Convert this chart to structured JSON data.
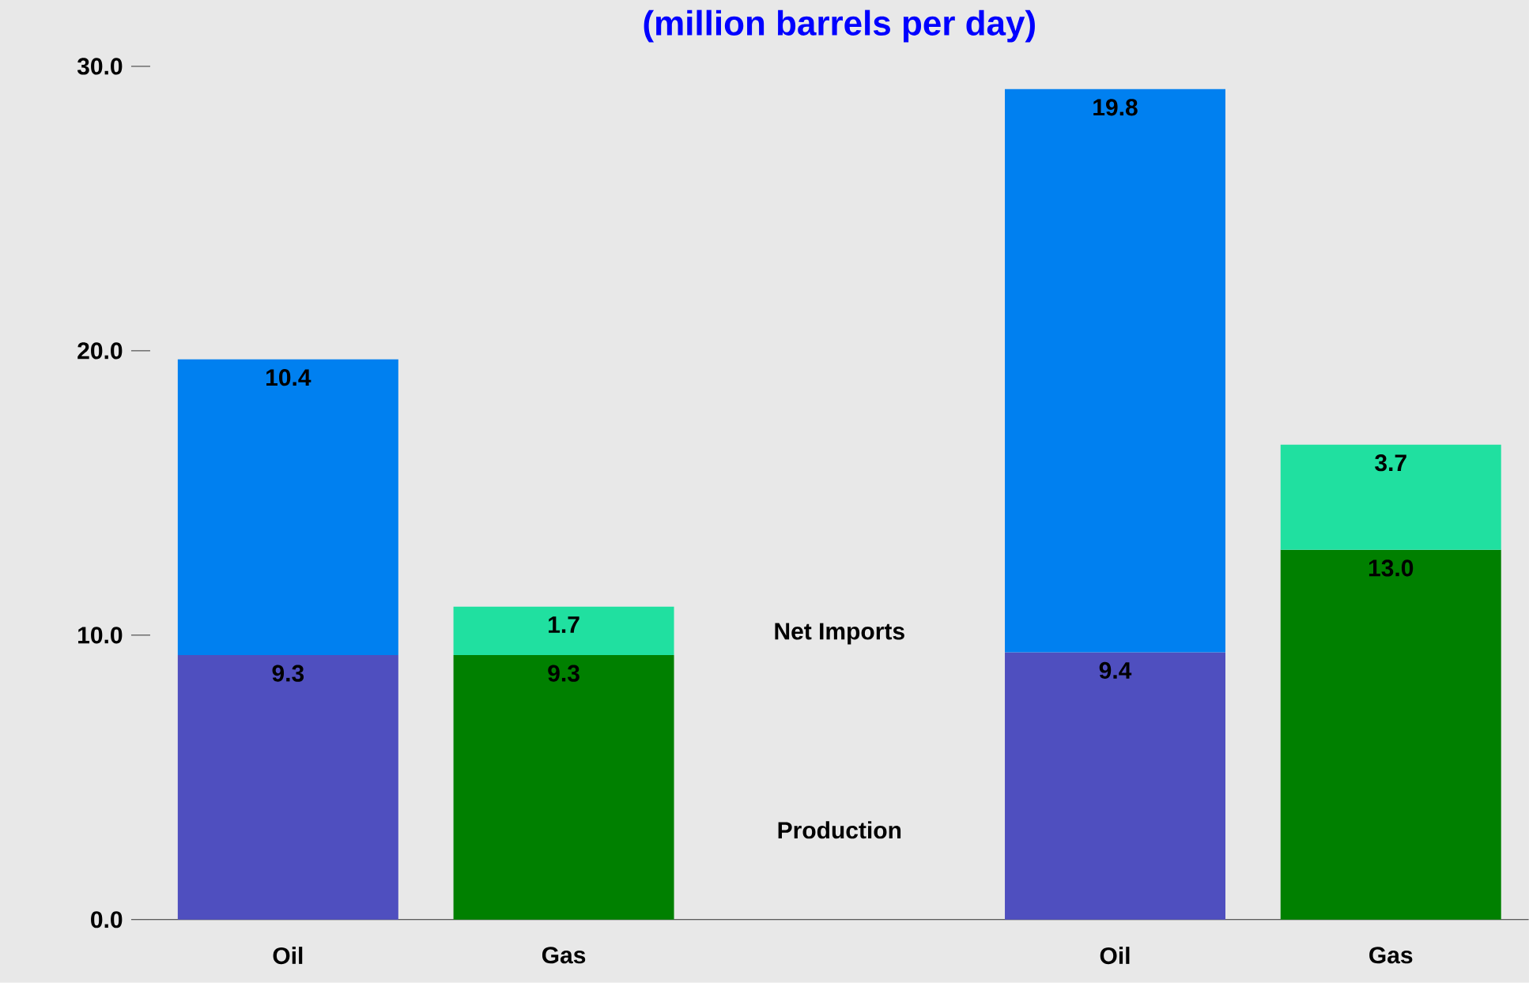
{
  "chart_data": {
    "type": "bar",
    "stacked": true,
    "title": "(million barrels per day)",
    "categories": [
      "Oil",
      "Gas",
      null,
      "Oil",
      "Gas"
    ],
    "series": [
      {
        "colors": [
          "#4f4fbf",
          "#008000",
          null,
          "#4f4fbf",
          "#008000"
        ],
        "values": [
          9.3,
          9.3,
          null,
          9.4,
          13.0
        ],
        "value_labels": [
          "9.3",
          "9.3",
          null,
          "9.4",
          "13.0"
        ]
      },
      {
        "colors": [
          "#0080f0",
          "#20e0a0",
          null,
          "#0080f0",
          "#20e0a0"
        ],
        "values": [
          10.4,
          1.7,
          null,
          19.8,
          3.7
        ],
        "value_labels": [
          "10.4",
          "1.7",
          null,
          "19.8",
          "3.7"
        ]
      }
    ],
    "annotations": [
      "Net Imports",
      "Production"
    ],
    "ylim": [
      0,
      30
    ],
    "yticks": [
      {
        "value": 0,
        "label": "0.0"
      },
      {
        "value": 10,
        "label": "10.0"
      },
      {
        "value": 20,
        "label": "20.0"
      },
      {
        "value": 30,
        "label": "30.0"
      }
    ],
    "grid": false
  }
}
